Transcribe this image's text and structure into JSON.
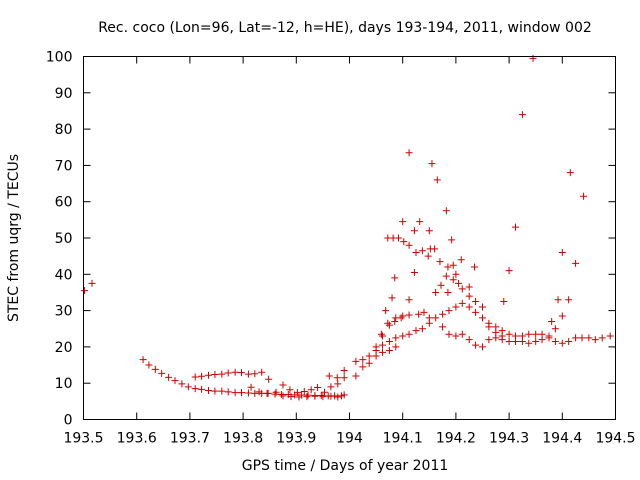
{
  "chart_data": {
    "type": "scatter",
    "title": "Rec. coco (Lon=96, Lat=-12, h=HE), days 193-194, 2011, window 002",
    "xlabel": "GPS time / Days of year 2011",
    "ylabel": "STEC from uqrg / TECUs",
    "xlim": [
      193.5,
      194.5
    ],
    "ylim": [
      0,
      100
    ],
    "x_ticks": [
      193.5,
      193.6,
      193.7,
      193.8,
      193.9,
      194,
      194.1,
      194.2,
      194.3,
      194.4,
      194.5
    ],
    "x_tick_labels": [
      "193.5",
      "193.6",
      "193.7",
      "193.8",
      "193.9",
      "194",
      "194.1",
      "194.2",
      "194.3",
      "194.4",
      "194.5"
    ],
    "y_ticks": [
      0,
      10,
      20,
      30,
      40,
      50,
      60,
      70,
      80,
      90,
      100
    ],
    "y_tick_labels": [
      "0",
      "10",
      "20",
      "30",
      "40",
      "50",
      "60",
      "70",
      "80",
      "90",
      "100"
    ],
    "marker": "+",
    "color": "#d00000",
    "points": [
      [
        193.502,
        35.5
      ],
      [
        193.516,
        37.5
      ],
      [
        193.612,
        16.5
      ],
      [
        193.623,
        15.0
      ],
      [
        193.635,
        13.8
      ],
      [
        193.647,
        12.7
      ],
      [
        193.66,
        11.6
      ],
      [
        193.672,
        10.7
      ],
      [
        193.685,
        9.8
      ],
      [
        193.697,
        9.0
      ],
      [
        193.71,
        8.5
      ],
      [
        193.722,
        8.3
      ],
      [
        193.735,
        8.0
      ],
      [
        193.747,
        7.8
      ],
      [
        193.76,
        7.8
      ],
      [
        193.772,
        7.6
      ],
      [
        193.785,
        7.4
      ],
      [
        193.797,
        7.4
      ],
      [
        193.81,
        7.3
      ],
      [
        193.822,
        7.2
      ],
      [
        193.835,
        7.2
      ],
      [
        193.847,
        7.2
      ],
      [
        193.86,
        7.0
      ],
      [
        193.872,
        6.9
      ],
      [
        193.885,
        6.9
      ],
      [
        193.897,
        6.8
      ],
      [
        193.91,
        6.7
      ],
      [
        193.922,
        6.7
      ],
      [
        193.935,
        6.6
      ],
      [
        193.947,
        6.6
      ],
      [
        193.96,
        6.5
      ],
      [
        193.972,
        6.5
      ],
      [
        193.985,
        6.5
      ],
      [
        193.71,
        11.7
      ],
      [
        193.722,
        11.9
      ],
      [
        193.735,
        12.2
      ],
      [
        193.747,
        12.4
      ],
      [
        193.76,
        12.5
      ],
      [
        193.772,
        12.8
      ],
      [
        193.785,
        13.0
      ],
      [
        193.797,
        12.9
      ],
      [
        193.81,
        12.5
      ],
      [
        193.822,
        12.6
      ],
      [
        193.835,
        13.0
      ],
      [
        193.848,
        11.1
      ],
      [
        193.815,
        8.9
      ],
      [
        193.83,
        7.6
      ],
      [
        193.845,
        7.2
      ],
      [
        193.862,
        7.5
      ],
      [
        193.875,
        9.5
      ],
      [
        193.888,
        8.2
      ],
      [
        193.902,
        7.4
      ],
      [
        193.915,
        7.7
      ],
      [
        193.928,
        8.2
      ],
      [
        193.94,
        8.8
      ],
      [
        193.953,
        7.5
      ],
      [
        193.965,
        9.0
      ],
      [
        193.978,
        9.8
      ],
      [
        193.99,
        11.5
      ],
      [
        193.875,
        6.5
      ],
      [
        193.89,
        6.3
      ],
      [
        193.905,
        6.2
      ],
      [
        193.92,
        6.3
      ],
      [
        193.935,
        6.4
      ],
      [
        193.95,
        6.3
      ],
      [
        193.965,
        6.4
      ],
      [
        193.978,
        6.2
      ],
      [
        193.99,
        6.8
      ],
      [
        193.962,
        12.0
      ],
      [
        193.977,
        11.5
      ],
      [
        193.99,
        13.5
      ],
      [
        194.012,
        12.0
      ],
      [
        194.025,
        14.5
      ],
      [
        194.037,
        15.5
      ],
      [
        194.05,
        17.5
      ],
      [
        194.062,
        18.5
      ],
      [
        194.075,
        19.0
      ],
      [
        194.087,
        20.0
      ],
      [
        194.012,
        16.0
      ],
      [
        194.025,
        16.5
      ],
      [
        194.037,
        17.5
      ],
      [
        194.05,
        19.0
      ],
      [
        194.062,
        20.5
      ],
      [
        194.075,
        21.5
      ],
      [
        194.087,
        22.5
      ],
      [
        194.1,
        23.0
      ],
      [
        194.112,
        23.5
      ],
      [
        194.125,
        24.5
      ],
      [
        194.137,
        25.0
      ],
      [
        194.15,
        26.5
      ],
      [
        194.162,
        28.0
      ],
      [
        194.175,
        29.0
      ],
      [
        194.187,
        30.0
      ],
      [
        194.2,
        31.0
      ],
      [
        194.05,
        20.0
      ],
      [
        194.062,
        23.0
      ],
      [
        194.075,
        26.0
      ],
      [
        194.087,
        28.0
      ],
      [
        194.1,
        28.5
      ],
      [
        194.112,
        28.8
      ],
      [
        194.06,
        23.5
      ],
      [
        194.072,
        26.5
      ],
      [
        194.085,
        27.0
      ],
      [
        194.097,
        28.0
      ],
      [
        194.068,
        30.0
      ],
      [
        194.08,
        33.5
      ],
      [
        194.085,
        39.0
      ],
      [
        194.092,
        50.0
      ],
      [
        194.102,
        49.0
      ],
      [
        194.112,
        48.0
      ],
      [
        194.072,
        50.0
      ],
      [
        194.082,
        50.0
      ],
      [
        194.1,
        54.5
      ],
      [
        194.112,
        73.5
      ],
      [
        194.112,
        33.0
      ],
      [
        194.122,
        40.5
      ],
      [
        194.122,
        52.0
      ],
      [
        194.132,
        54.5
      ],
      [
        194.125,
        46.0
      ],
      [
        194.137,
        46.5
      ],
      [
        194.148,
        45.0
      ],
      [
        194.152,
        47.0
      ],
      [
        194.16,
        47.0
      ],
      [
        194.17,
        43.5
      ],
      [
        194.155,
        70.5
      ],
      [
        194.165,
        66.0
      ],
      [
        194.182,
        57.5
      ],
      [
        194.192,
        49.5
      ],
      [
        194.15,
        52.0
      ],
      [
        194.13,
        29.0
      ],
      [
        194.14,
        29.5
      ],
      [
        194.15,
        28.0
      ],
      [
        194.162,
        35.0
      ],
      [
        194.172,
        37.0
      ],
      [
        194.182,
        39.5
      ],
      [
        194.185,
        35.0
      ],
      [
        194.195,
        38.5
      ],
      [
        194.2,
        40.0
      ],
      [
        194.205,
        37.5
      ],
      [
        194.212,
        36.0
      ],
      [
        194.225,
        34.0
      ],
      [
        194.185,
        42.0
      ],
      [
        194.195,
        42.5
      ],
      [
        194.21,
        44.0
      ],
      [
        194.225,
        36.5
      ],
      [
        194.235,
        42.0
      ],
      [
        194.175,
        25.5
      ],
      [
        194.187,
        23.5
      ],
      [
        194.2,
        23.0
      ],
      [
        194.212,
        23.5
      ],
      [
        194.225,
        22.0
      ],
      [
        194.237,
        20.5
      ],
      [
        194.25,
        20.0
      ],
      [
        194.262,
        22.0
      ],
      [
        194.275,
        22.5
      ],
      [
        194.287,
        22.0
      ],
      [
        194.3,
        21.5
      ],
      [
        194.312,
        21.5
      ],
      [
        194.325,
        21.5
      ],
      [
        194.337,
        21.0
      ],
      [
        194.35,
        21.5
      ],
      [
        194.362,
        22.0
      ],
      [
        194.375,
        22.5
      ],
      [
        194.387,
        21.5
      ],
      [
        194.4,
        21.0
      ],
      [
        194.412,
        21.5
      ],
      [
        194.425,
        22.5
      ],
      [
        194.437,
        22.5
      ],
      [
        194.45,
        22.5
      ],
      [
        194.462,
        22.0
      ],
      [
        194.475,
        22.5
      ],
      [
        194.49,
        23.0
      ],
      [
        194.212,
        32.0
      ],
      [
        194.225,
        31.0
      ],
      [
        194.237,
        29.5
      ],
      [
        194.25,
        28.0
      ],
      [
        194.262,
        26.5
      ],
      [
        194.275,
        25.5
      ],
      [
        194.287,
        24.5
      ],
      [
        194.3,
        23.5
      ],
      [
        194.312,
        23.0
      ],
      [
        194.325,
        23.0
      ],
      [
        194.337,
        23.5
      ],
      [
        194.35,
        23.5
      ],
      [
        194.362,
        23.5
      ],
      [
        194.375,
        23.0
      ],
      [
        194.237,
        32.5
      ],
      [
        194.25,
        31.0
      ],
      [
        194.262,
        25.5
      ],
      [
        194.275,
        24.0
      ],
      [
        194.287,
        23.0
      ],
      [
        194.29,
        32.5
      ],
      [
        194.3,
        41.0
      ],
      [
        194.312,
        53.0
      ],
      [
        194.325,
        84.0
      ],
      [
        194.345,
        99.5
      ],
      [
        194.38,
        27.0
      ],
      [
        194.387,
        25.0
      ],
      [
        194.392,
        33.0
      ],
      [
        194.4,
        46.0
      ],
      [
        194.4,
        28.5
      ],
      [
        194.412,
        33.0
      ],
      [
        194.415,
        68.0
      ],
      [
        194.425,
        43.0
      ],
      [
        194.44,
        61.5
      ]
    ]
  }
}
